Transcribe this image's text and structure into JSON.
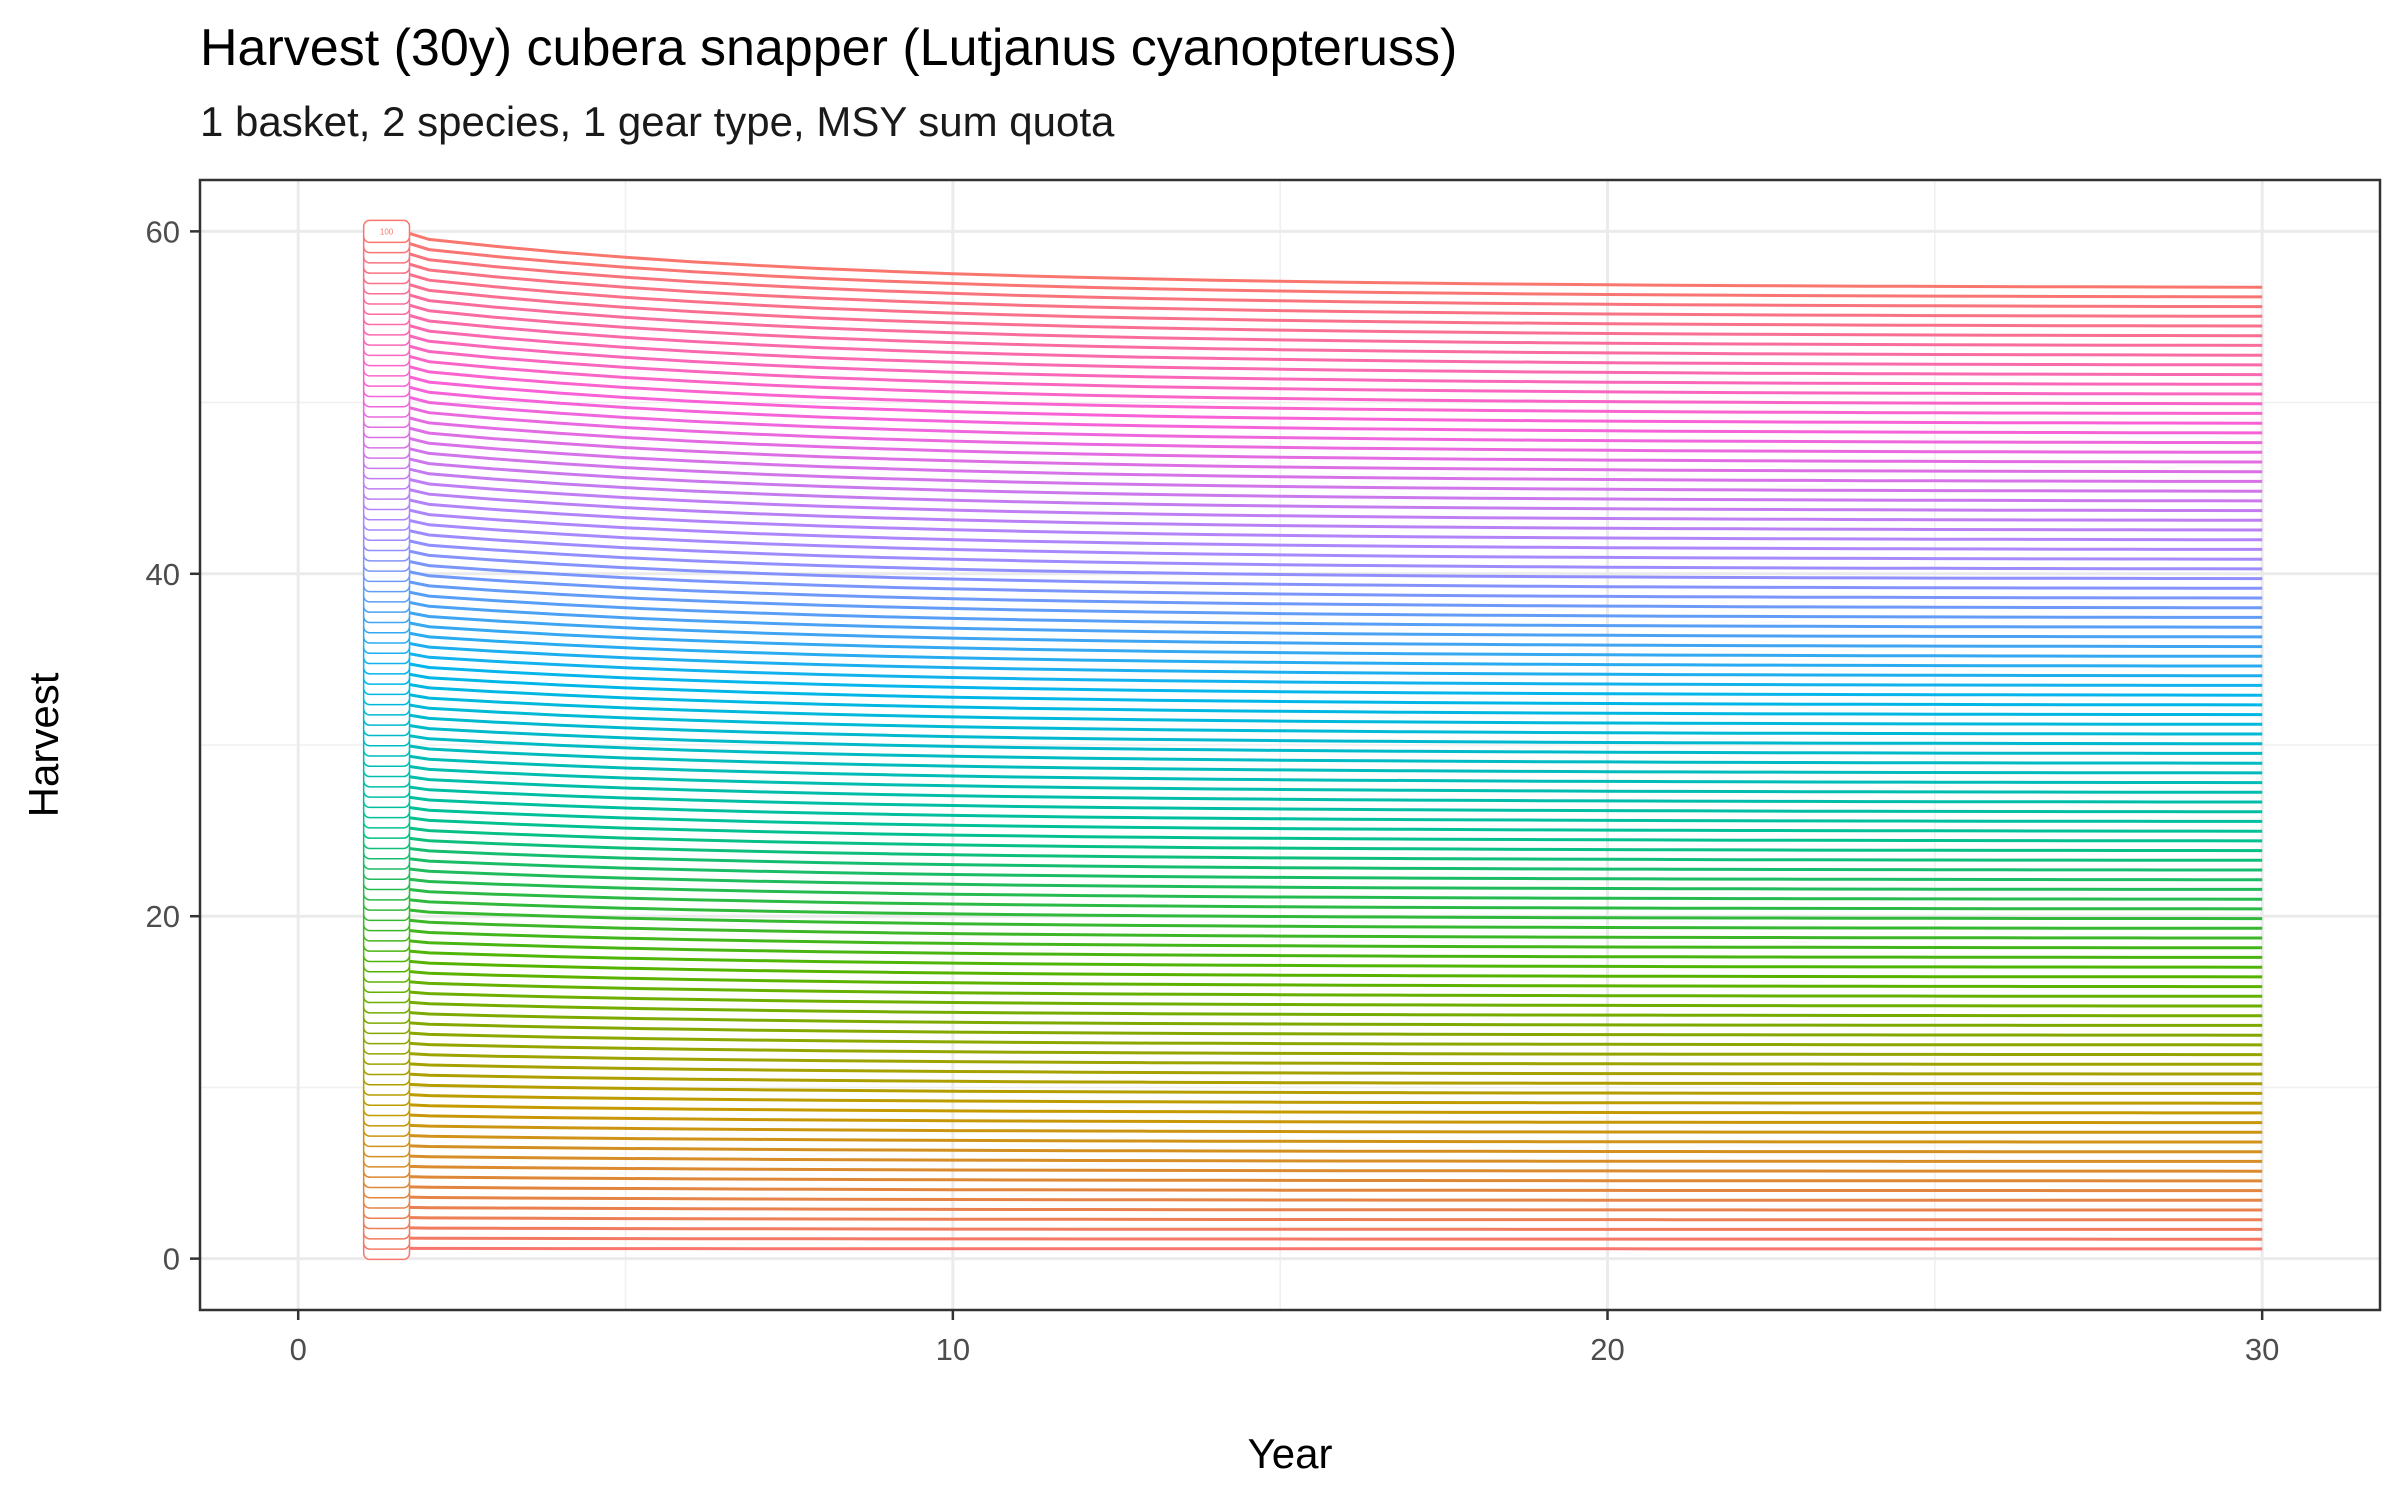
{
  "chart_data": {
    "type": "line",
    "title": "Harvest (30y) cubera snapper (Lutjanus cyanopteruss)",
    "subtitle": "1 basket, 2 species, 1 gear type, MSY sum quota",
    "xlabel": "Year",
    "ylabel": "Harvest",
    "xlim": [
      -1.5,
      31.8
    ],
    "ylim": [
      -3,
      63
    ],
    "x_ticks": [
      "0",
      "10",
      "20",
      "30"
    ],
    "y_ticks": [
      "0",
      "20",
      "40",
      "60"
    ],
    "grid": true,
    "legend": "none",
    "x": [
      1,
      2,
      3,
      4,
      5,
      6,
      7,
      8,
      9,
      10,
      11,
      12,
      13,
      14,
      15,
      16,
      17,
      18,
      19,
      20,
      21,
      22,
      23,
      24,
      25,
      26,
      27,
      28,
      29,
      30
    ],
    "series_count": 100,
    "series_note_values": "Each series s = 1..100 starts at Harvest = 0.6 * s in year 1 and declines smoothly toward 0.945 * start by year 30.",
    "series_start_year1": {
      "first": 0.6,
      "step": 0.6,
      "last": 60.0
    },
    "series_end_year30": {
      "first": 0.57,
      "step": 0.567,
      "last": 56.7
    },
    "series_label_at_top": "100",
    "palette_stops": [
      "#F8766D",
      "#C49A00",
      "#53B400",
      "#00C094",
      "#00B6EB",
      "#A58AFF",
      "#FB61D7",
      "#F8766D"
    ]
  }
}
